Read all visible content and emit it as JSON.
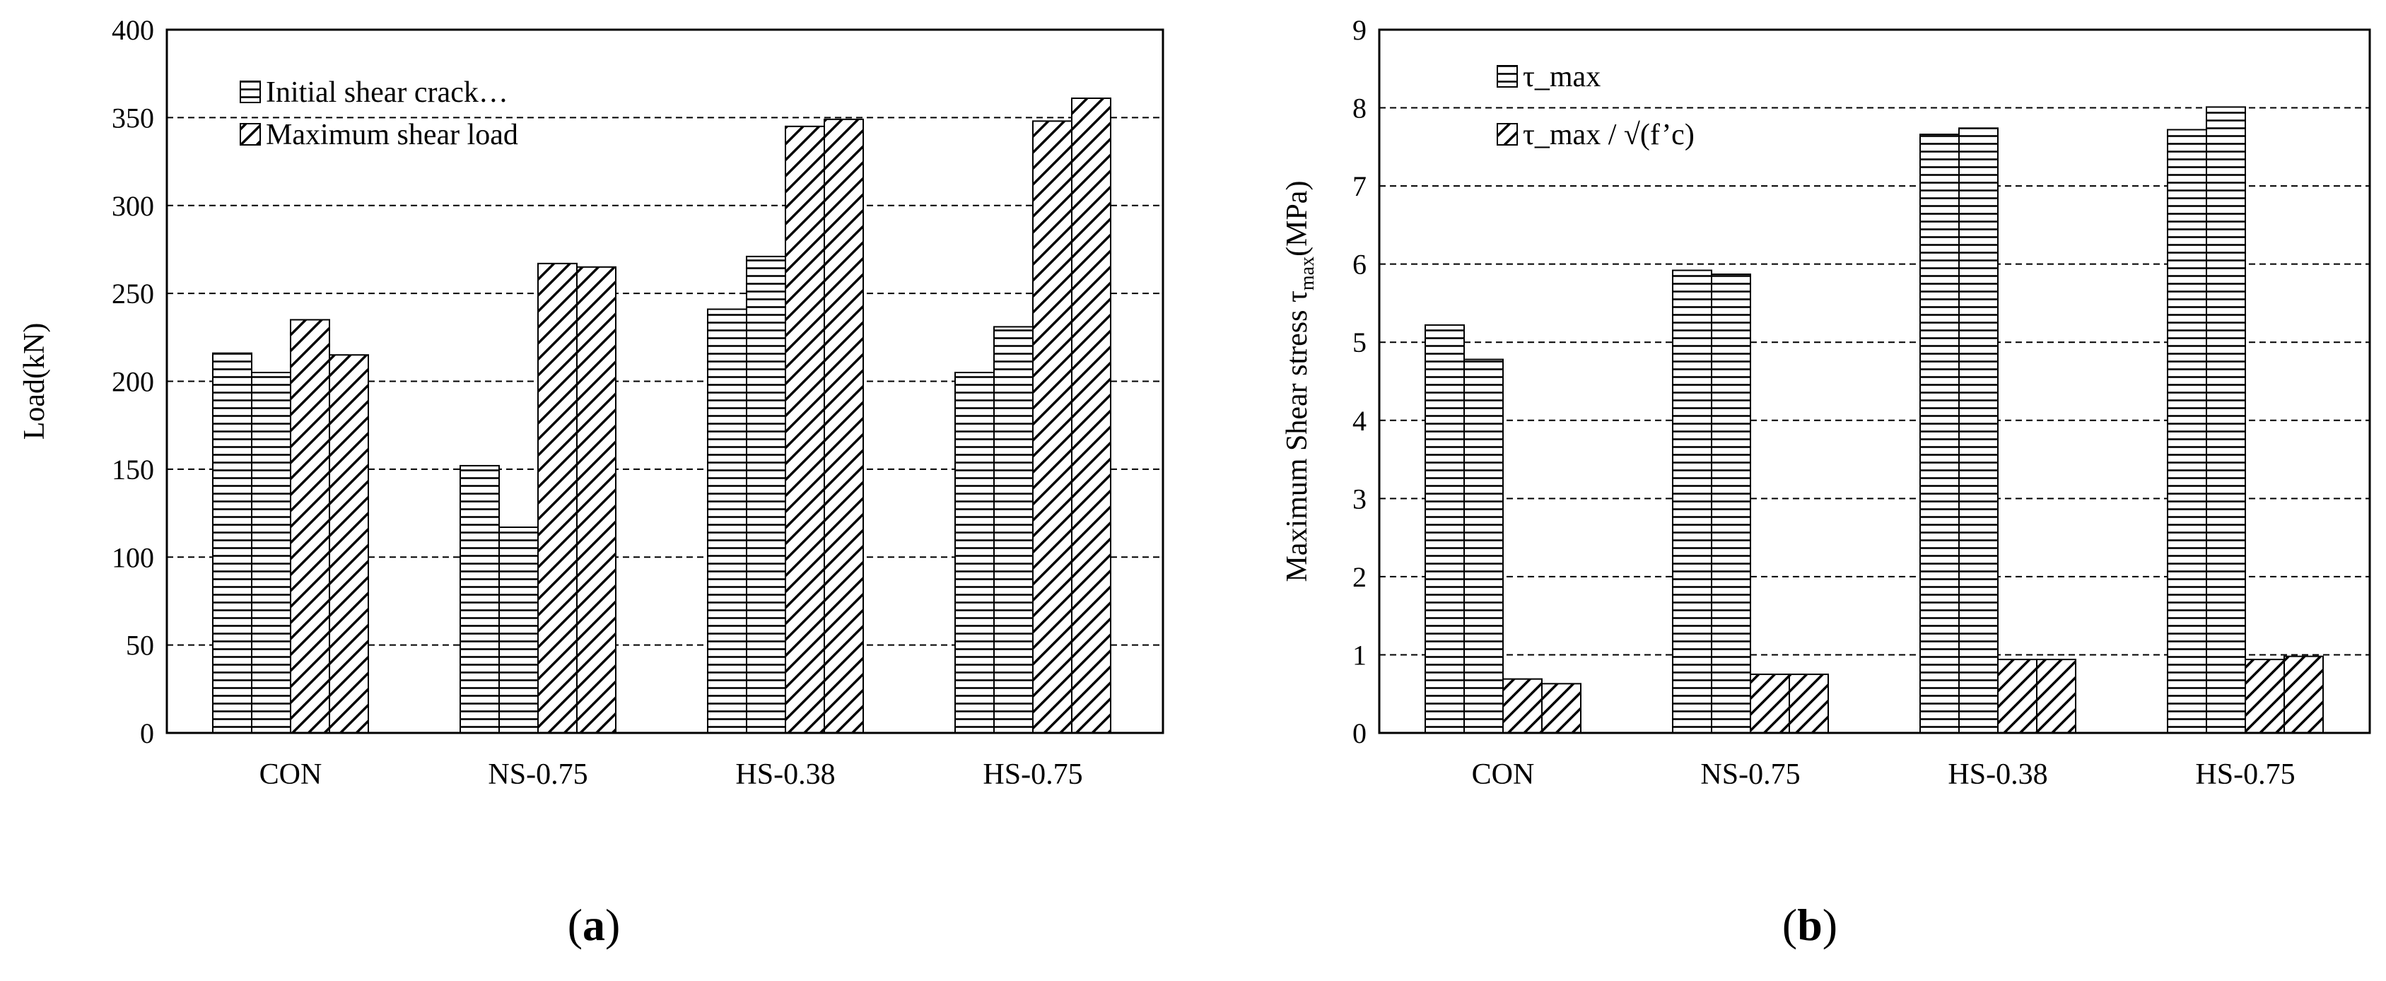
{
  "chart_data": [
    {
      "type": "bar",
      "panel_prefix": "(",
      "panel_letter": "a",
      "panel_suffix": ")",
      "ylabel": "Load(kN)",
      "xlabel": "",
      "ylim": [
        0,
        400
      ],
      "yticks": [
        0,
        50,
        100,
        150,
        200,
        250,
        300,
        350,
        400
      ],
      "grid": true,
      "legend_position": "top-left",
      "categories": [
        "CON",
        "NS-0.75",
        "HS-0.38",
        "HS-0.75"
      ],
      "series": [
        {
          "name": "Initial shear crack…",
          "pattern": "horizontal",
          "values": [
            [
              216,
              205
            ],
            [
              152,
              117
            ],
            [
              241,
              271
            ],
            [
              205,
              231
            ]
          ]
        },
        {
          "name": "Maximum shear load",
          "pattern": "diagonal",
          "values": [
            [
              235,
              215
            ],
            [
              267,
              265
            ],
            [
              345,
              349
            ],
            [
              348,
              361
            ]
          ]
        }
      ]
    },
    {
      "type": "bar",
      "panel_prefix": "(",
      "panel_letter": "b",
      "panel_suffix": ")",
      "ylabel_prefix": "Maximum  Shear stress  τ",
      "ylabel_sub": "max",
      "ylabel_suffix": "(MPa)",
      "xlabel": "",
      "ylim": [
        0,
        9
      ],
      "yticks": [
        0,
        1,
        2,
        3,
        4,
        5,
        6,
        7,
        8,
        9
      ],
      "grid": true,
      "legend_position": "top-left",
      "categories": [
        "CON",
        "NS-0.75",
        "HS-0.38",
        "HS-0.75"
      ],
      "series": [
        {
          "name": "τ_max",
          "pattern": "horizontal",
          "values": [
            [
              5.22,
              4.78
            ],
            [
              5.92,
              5.87
            ],
            [
              7.66,
              7.74
            ],
            [
              7.72,
              8.01
            ]
          ]
        },
        {
          "name": "τ_max / √(f’c)",
          "pattern": "diagonal",
          "values": [
            [
              0.69,
              0.63
            ],
            [
              0.75,
              0.75
            ],
            [
              0.94,
              0.94
            ],
            [
              0.94,
              0.98
            ]
          ]
        }
      ]
    }
  ]
}
